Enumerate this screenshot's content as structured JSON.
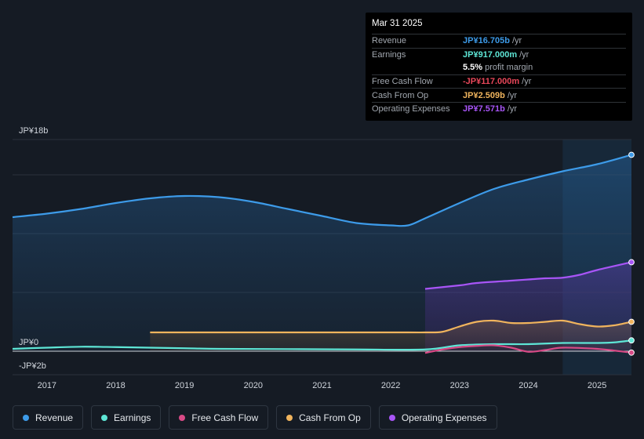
{
  "tooltip": {
    "date": "Mar 31 2025",
    "rows": [
      {
        "label": "Revenue",
        "value": "JP¥16.705b",
        "unit": "/yr",
        "color": "#3d9be9"
      },
      {
        "label": "Earnings",
        "value": "JP¥917.000m",
        "unit": "/yr",
        "color": "#5ee6d6"
      },
      {
        "label": "",
        "value": "5.5%",
        "unit": "profit margin",
        "color": "#ffffff"
      },
      {
        "label": "Free Cash Flow",
        "value": "-JP¥117.000m",
        "unit": "/yr",
        "color": "#e8475a"
      },
      {
        "label": "Cash From Op",
        "value": "JP¥2.509b",
        "unit": "/yr",
        "color": "#f0b45d"
      },
      {
        "label": "Operating Expenses",
        "value": "JP¥7.571b",
        "unit": "/yr",
        "color": "#a855f7"
      }
    ]
  },
  "legend": [
    {
      "label": "Revenue",
      "color": "#3d9be9"
    },
    {
      "label": "Earnings",
      "color": "#5ee6d6"
    },
    {
      "label": "Free Cash Flow",
      "color": "#d84a86"
    },
    {
      "label": "Cash From Op",
      "color": "#f0b45d"
    },
    {
      "label": "Operating Expenses",
      "color": "#a855f7"
    }
  ],
  "chart_data": {
    "type": "area",
    "ylabels": {
      "top": "JP¥18b",
      "zero": "JP¥0",
      "bottom": "-JP¥2b"
    },
    "ylim": [
      -2,
      18
    ],
    "xlim": [
      2016.25,
      2025.25
    ],
    "forecast_start": 2024.25,
    "xticks": [
      {
        "label": "2017",
        "value": 2016.75
      },
      {
        "label": "2018",
        "value": 2017.75
      },
      {
        "label": "2019",
        "value": 2018.75
      },
      {
        "label": "2020",
        "value": 2019.75
      },
      {
        "label": "2021",
        "value": 2020.75
      },
      {
        "label": "2022",
        "value": 2021.75
      },
      {
        "label": "2023",
        "value": 2022.75
      },
      {
        "label": "2024",
        "value": 2023.75
      },
      {
        "label": "2025",
        "value": 2024.75
      }
    ],
    "series": [
      {
        "name": "Revenue",
        "color": "#3d9be9",
        "fill": true,
        "x": [
          2016.25,
          2016.75,
          2017.25,
          2017.75,
          2018.25,
          2018.75,
          2019.25,
          2019.75,
          2020.25,
          2020.75,
          2021.25,
          2021.75,
          2022.0,
          2022.25,
          2022.75,
          2023.25,
          2023.75,
          2024.25,
          2024.75,
          2025.25
        ],
        "values": [
          11.4,
          11.7,
          12.1,
          12.6,
          13.0,
          13.2,
          13.1,
          12.7,
          12.1,
          11.5,
          10.9,
          10.7,
          10.7,
          11.3,
          12.6,
          13.8,
          14.6,
          15.3,
          15.9,
          16.7
        ]
      },
      {
        "name": "Operating Expenses",
        "color": "#a855f7",
        "fill": true,
        "x": [
          2022.25,
          2022.75,
          2023.0,
          2023.5,
          2023.75,
          2024.0,
          2024.25,
          2024.5,
          2024.75,
          2025.25
        ],
        "values": [
          5.3,
          5.6,
          5.8,
          6.0,
          6.1,
          6.2,
          6.25,
          6.5,
          6.9,
          7.57
        ]
      },
      {
        "name": "Cash From Op",
        "color": "#f0b45d",
        "fill": true,
        "x": [
          2018.25,
          2019.0,
          2020.0,
          2021.0,
          2022.0,
          2022.25,
          2022.5,
          2022.75,
          2023.0,
          2023.25,
          2023.5,
          2023.75,
          2024.0,
          2024.25,
          2024.5,
          2024.75,
          2025.0,
          2025.25
        ],
        "values": [
          1.6,
          1.6,
          1.6,
          1.6,
          1.6,
          1.6,
          1.65,
          2.1,
          2.5,
          2.6,
          2.4,
          2.4,
          2.5,
          2.6,
          2.3,
          2.1,
          2.2,
          2.5
        ]
      },
      {
        "name": "Earnings",
        "color": "#5ee6d6",
        "fill": false,
        "x": [
          2016.25,
          2016.75,
          2017.25,
          2017.75,
          2018.25,
          2018.75,
          2019.25,
          2020.25,
          2021.25,
          2022.25,
          2022.75,
          2023.25,
          2023.75,
          2024.25,
          2024.75,
          2025.0,
          2025.25
        ],
        "values": [
          0.2,
          0.3,
          0.38,
          0.35,
          0.3,
          0.25,
          0.2,
          0.18,
          0.15,
          0.15,
          0.5,
          0.6,
          0.6,
          0.7,
          0.7,
          0.75,
          0.92
        ]
      },
      {
        "name": "Free Cash Flow",
        "color": "#d84a86",
        "fill": false,
        "x": [
          2022.25,
          2022.5,
          2022.75,
          2023.0,
          2023.25,
          2023.5,
          2023.75,
          2024.0,
          2024.25,
          2024.75,
          2025.0,
          2025.25
        ],
        "values": [
          -0.15,
          0.15,
          0.35,
          0.45,
          0.5,
          0.3,
          -0.05,
          0.1,
          0.3,
          0.2,
          0.05,
          -0.12
        ]
      }
    ]
  }
}
